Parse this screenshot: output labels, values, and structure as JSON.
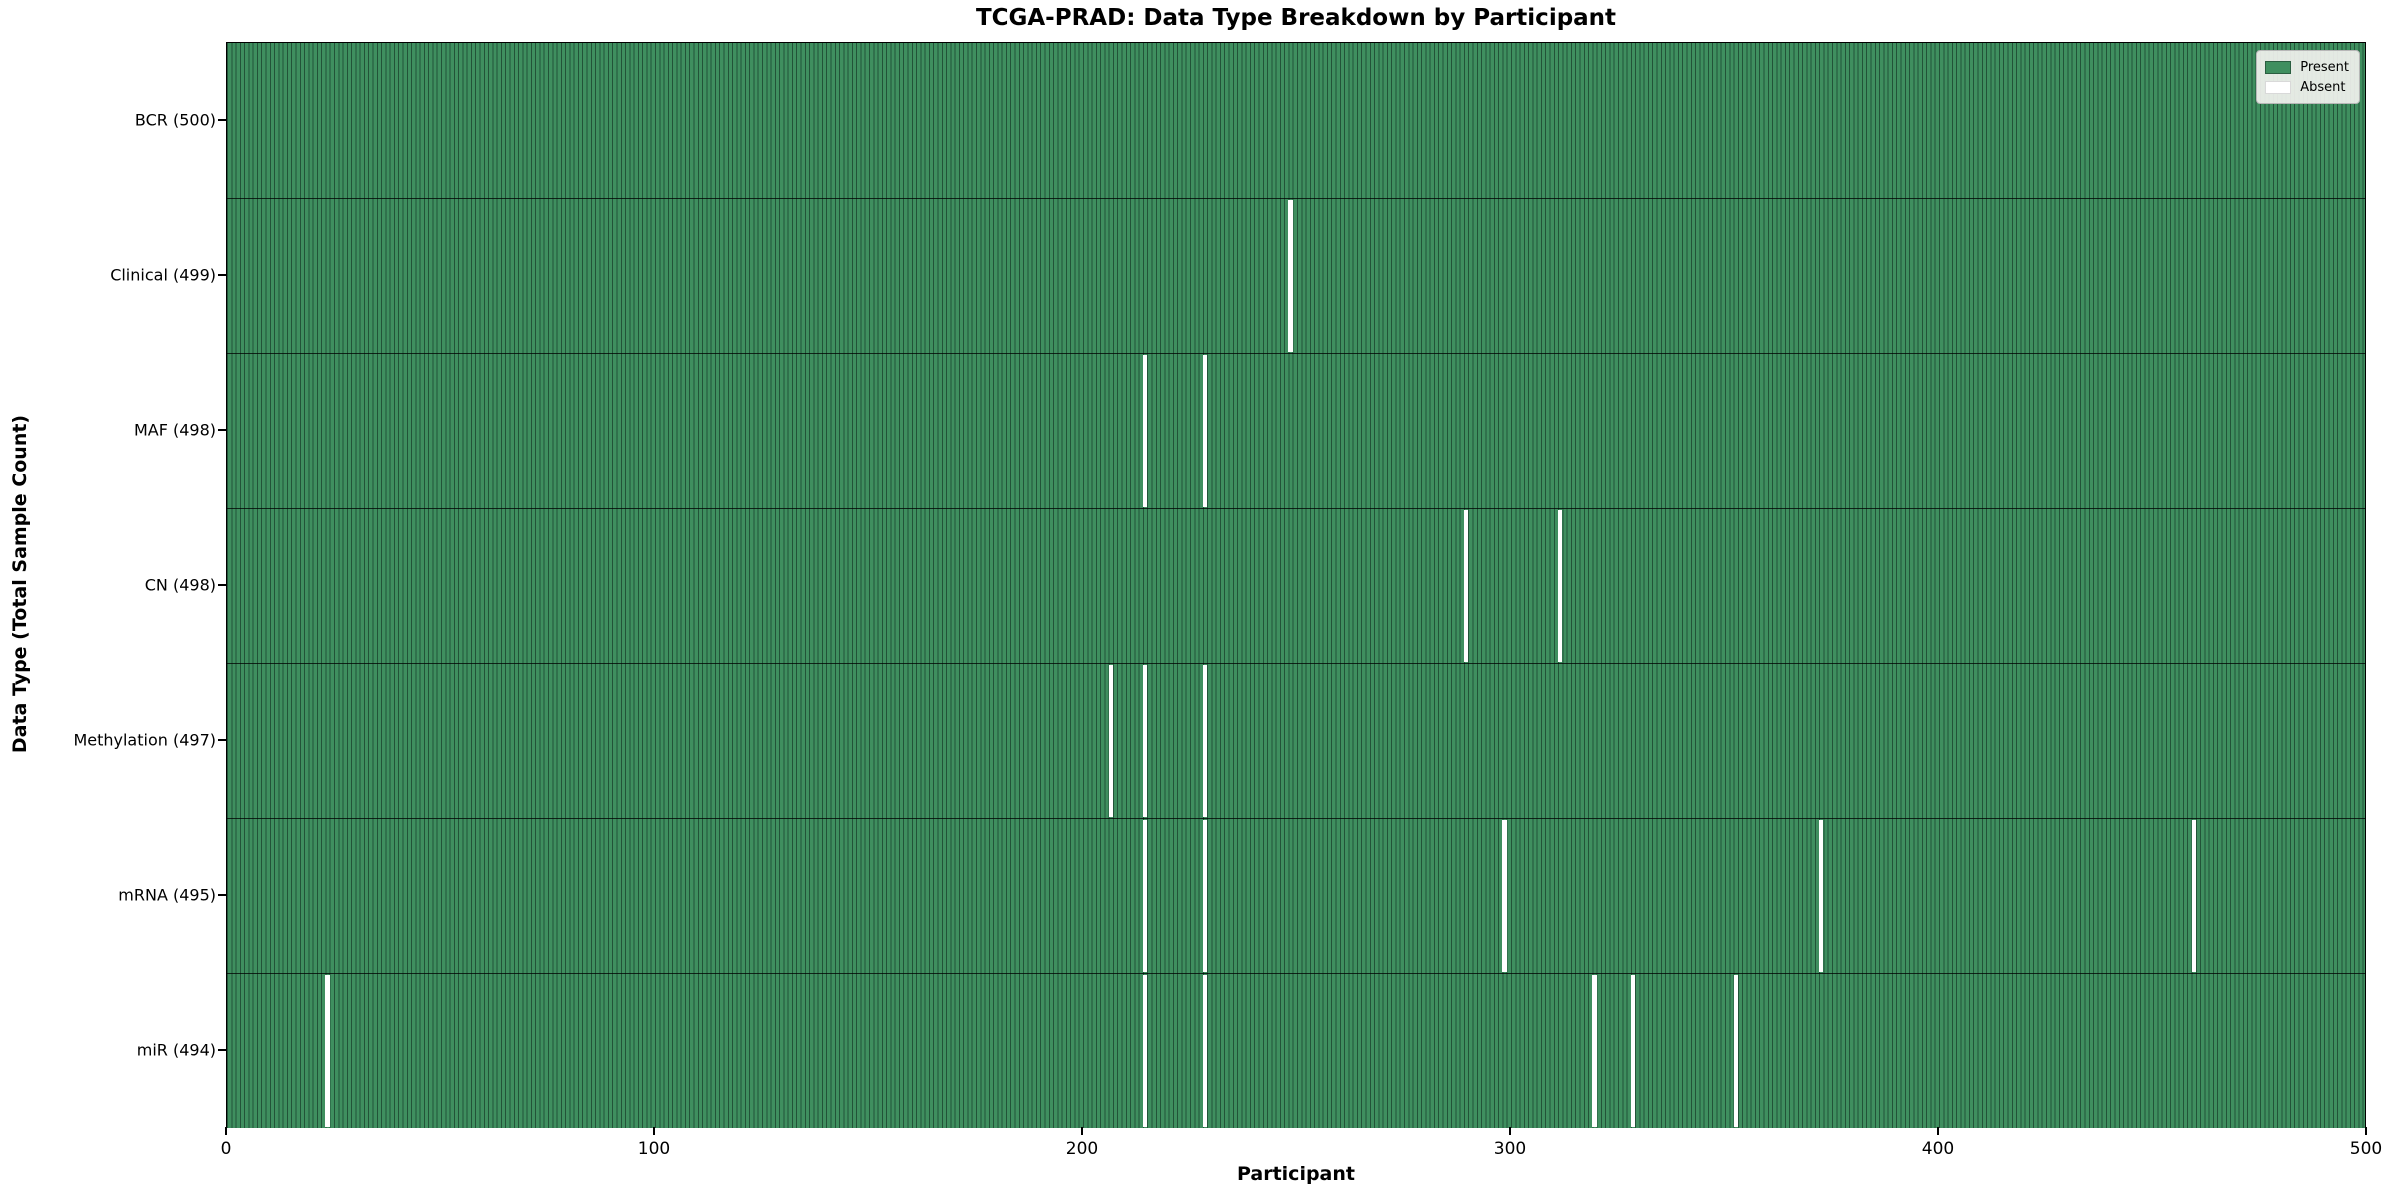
{
  "figure": {
    "title": "TCGA-PRAD: Data Type Breakdown by Participant",
    "xlabel": "Participant",
    "ylabel": "Data Type (Total Sample Count)"
  },
  "legend": {
    "entries": [
      {
        "label": "Present",
        "color": "#3f8f5f"
      },
      {
        "label": "Absent",
        "color": "#ffffff"
      }
    ]
  },
  "chart_data": {
    "type": "heatmap",
    "title": "TCGA-PRAD: Data Type Breakdown by Participant",
    "xlabel": "Participant",
    "ylabel": "Data Type (Total Sample Count)",
    "x_range": [
      0,
      500
    ],
    "x_ticks": [
      0,
      100,
      200,
      300,
      400,
      500
    ],
    "n_participants": 500,
    "grid": false,
    "legend_position": "upper right",
    "colors": {
      "present": "#3f8f5f",
      "cell_edge": "#225338",
      "absent": "#ffffff"
    },
    "rows": [
      {
        "data_type": "BCR",
        "label": "BCR (500)",
        "present_count": 500,
        "absent_participants": []
      },
      {
        "data_type": "Clinical",
        "label": "Clinical (499)",
        "present_count": 499,
        "absent_participants": [
          248
        ]
      },
      {
        "data_type": "MAF",
        "label": "MAF (498)",
        "present_count": 498,
        "absent_participants": [
          214,
          228
        ]
      },
      {
        "data_type": "CN",
        "label": "CN (498)",
        "present_count": 498,
        "absent_participants": [
          289,
          311
        ]
      },
      {
        "data_type": "Methylation",
        "label": "Methylation (497)",
        "present_count": 497,
        "absent_participants": [
          206,
          214,
          228
        ]
      },
      {
        "data_type": "mRNA",
        "label": "mRNA (495)",
        "present_count": 495,
        "absent_participants": [
          214,
          228,
          298,
          372,
          459
        ]
      },
      {
        "data_type": "miR",
        "label": "miR (494)",
        "present_count": 494,
        "absent_participants": [
          23,
          214,
          228,
          319,
          328,
          352
        ]
      }
    ]
  }
}
